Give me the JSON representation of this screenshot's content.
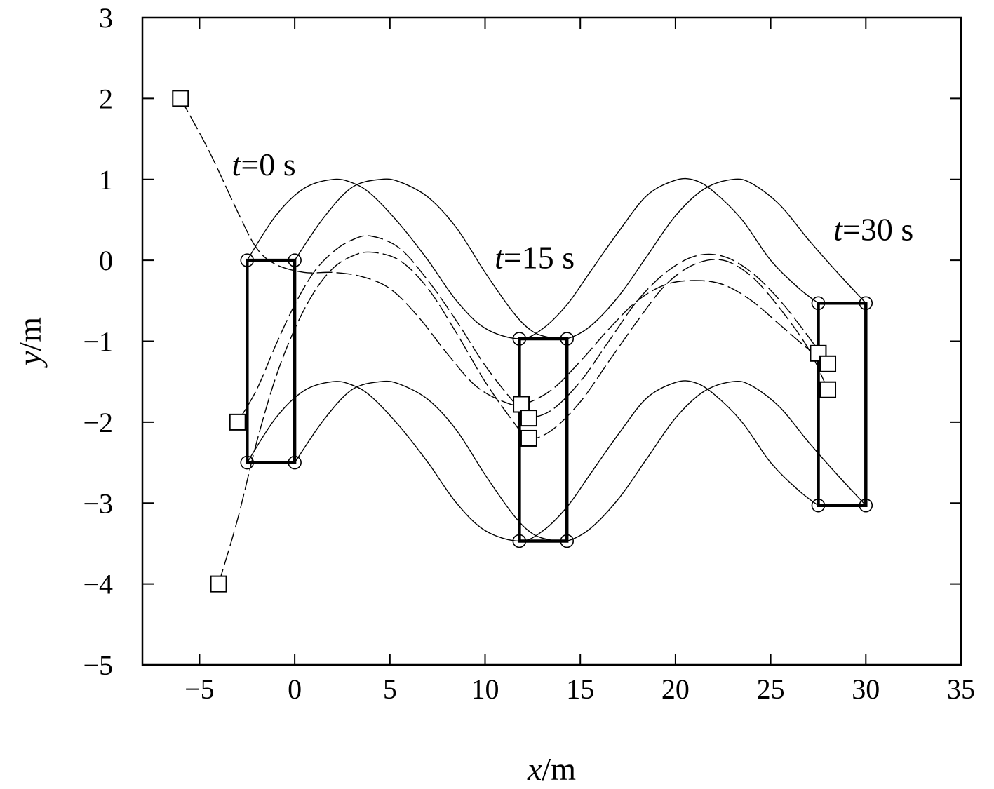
{
  "chart_data": {
    "type": "line",
    "xlabel": {
      "italic": "x",
      "rest": "/m"
    },
    "ylabel": {
      "italic": "y",
      "rest": "/m"
    },
    "xlim": [
      -8,
      35
    ],
    "ylim": [
      -5,
      3
    ],
    "xticks": [
      -5,
      0,
      5,
      10,
      15,
      20,
      25,
      30,
      35
    ],
    "yticks": [
      -5,
      -4,
      -3,
      -2,
      -1,
      0,
      1,
      2,
      3
    ],
    "grid": false,
    "annotations": [
      {
        "italic": "t",
        "rest": "=0 s",
        "x": -3.3,
        "y": 1.05
      },
      {
        "italic": "t",
        "rest": "=15 s",
        "x": 10.5,
        "y": -0.1
      },
      {
        "italic": "t",
        "rest": "=30 s",
        "x": 28.3,
        "y": 0.25
      }
    ],
    "formations": [
      {
        "time": "t=0 s",
        "corners": [
          [
            -2.5,
            0
          ],
          [
            0,
            0
          ],
          [
            0,
            -2.5
          ],
          [
            -2.5,
            -2.5
          ]
        ]
      },
      {
        "time": "t=15 s",
        "corners": [
          [
            11.8,
            -0.97
          ],
          [
            14.3,
            -0.97
          ],
          [
            14.3,
            -3.47
          ],
          [
            11.8,
            -3.47
          ]
        ]
      },
      {
        "time": "t=30 s",
        "corners": [
          [
            27.5,
            -0.53
          ],
          [
            30,
            -0.53
          ],
          [
            30,
            -3.03
          ],
          [
            27.5,
            -3.03
          ]
        ]
      }
    ],
    "leader_paths": [
      {
        "name": "corner-top-left",
        "x": [
          -2.5,
          -1,
          0.5,
          2,
          3,
          4,
          5.5,
          7,
          8.5,
          10,
          11.8,
          13,
          14.3,
          15.5,
          17,
          18.5,
          20,
          21,
          22,
          23.5,
          25,
          26.5,
          27.5
        ],
        "y": [
          0,
          0.55,
          0.89,
          1.0,
          0.96,
          0.82,
          0.45,
          0.0,
          -0.5,
          -0.84,
          -0.97,
          -0.85,
          -0.55,
          -0.15,
          0.35,
          0.8,
          0.99,
          0.99,
          0.85,
          0.5,
          0.0,
          -0.35,
          -0.53
        ]
      },
      {
        "name": "corner-top-right",
        "x": [
          0,
          1.5,
          3,
          4.5,
          5.5,
          7,
          8.5,
          10,
          11.5,
          12.5,
          13.5,
          14.3,
          15.5,
          17,
          18.5,
          20,
          21.5,
          23,
          24,
          25.5,
          27,
          28.5,
          30
        ],
        "y": [
          0,
          0.52,
          0.9,
          1.0,
          0.97,
          0.78,
          0.4,
          -0.15,
          -0.65,
          -0.88,
          -0.96,
          -0.97,
          -0.82,
          -0.45,
          0.05,
          0.55,
          0.88,
          1.0,
          0.95,
          0.68,
          0.25,
          -0.15,
          -0.53
        ]
      },
      {
        "name": "corner-bottom-left",
        "x": [
          -2.5,
          -1,
          0.5,
          2,
          3,
          4,
          5.5,
          7,
          8.5,
          10,
          11.8,
          13,
          14.3,
          15.5,
          17,
          18.5,
          20,
          21,
          22,
          23.5,
          25,
          26.5,
          27.5
        ],
        "y": [
          -2.5,
          -1.95,
          -1.61,
          -1.5,
          -1.54,
          -1.68,
          -2.05,
          -2.5,
          -3.0,
          -3.34,
          -3.47,
          -3.35,
          -3.05,
          -2.65,
          -2.15,
          -1.7,
          -1.51,
          -1.51,
          -1.65,
          -2.0,
          -2.5,
          -2.85,
          -3.03
        ]
      },
      {
        "name": "corner-bottom-right",
        "x": [
          0,
          1.5,
          3,
          4.5,
          5.5,
          7,
          8.5,
          10,
          11.5,
          12.5,
          13.5,
          14.3,
          15.5,
          17,
          18.5,
          20,
          21.5,
          23,
          24,
          25.5,
          27,
          28.5,
          30
        ],
        "y": [
          -2.5,
          -1.98,
          -1.6,
          -1.5,
          -1.53,
          -1.72,
          -2.1,
          -2.65,
          -3.15,
          -3.38,
          -3.46,
          -3.47,
          -3.32,
          -2.95,
          -2.45,
          -1.95,
          -1.62,
          -1.5,
          -1.55,
          -1.82,
          -2.25,
          -2.65,
          -3.03
        ]
      }
    ],
    "follower_paths": [
      {
        "name": "follower-1",
        "start": [
          -6,
          2
        ],
        "end": [
          27.5,
          -1.15
        ],
        "x": [
          -6,
          -4.5,
          -3,
          -2,
          -1,
          0.5,
          2,
          3.5,
          5,
          6.5,
          8,
          9.5,
          11,
          12,
          13.5,
          15,
          16.5,
          18,
          19.5,
          21,
          22.5,
          24,
          25.5,
          27,
          27.5
        ],
        "y": [
          2,
          1.35,
          0.6,
          0.15,
          -0.05,
          -0.15,
          -0.15,
          -0.2,
          -0.35,
          -0.7,
          -1.15,
          -1.55,
          -1.75,
          -1.78,
          -1.6,
          -1.25,
          -0.85,
          -0.5,
          -0.3,
          -0.25,
          -0.3,
          -0.5,
          -0.8,
          -1.1,
          -1.15
        ]
      },
      {
        "name": "follower-2",
        "start": [
          -3,
          -2
        ],
        "end": [
          28,
          -1.28
        ],
        "x": [
          -3,
          -2,
          -1,
          0,
          1,
          2,
          3,
          4,
          5.5,
          7,
          8.5,
          10,
          11.5,
          12.3,
          13.5,
          15,
          16.5,
          18,
          19.5,
          21,
          22.5,
          24,
          25.5,
          27,
          28
        ],
        "y": [
          -2,
          -1.6,
          -1.05,
          -0.55,
          -0.15,
          0.1,
          0.25,
          0.3,
          0.15,
          -0.25,
          -0.75,
          -1.3,
          -1.75,
          -1.93,
          -1.85,
          -1.5,
          -1.0,
          -0.5,
          -0.15,
          0.05,
          0.05,
          -0.15,
          -0.5,
          -0.95,
          -1.28
        ]
      },
      {
        "name": "follower-3",
        "start": [
          -4,
          -4
        ],
        "end": [
          28,
          -1.6
        ],
        "x": [
          -4,
          -3,
          -2,
          -1,
          0,
          1,
          2,
          3,
          4,
          5.5,
          7,
          8.5,
          10,
          11.5,
          12.3,
          13.5,
          15,
          16.5,
          18,
          19.5,
          21,
          22.5,
          24,
          25.5,
          27,
          28
        ],
        "y": [
          -4,
          -3.2,
          -2.25,
          -1.45,
          -0.85,
          -0.4,
          -0.1,
          0.05,
          0.1,
          0.0,
          -0.35,
          -0.9,
          -1.5,
          -2.0,
          -2.2,
          -2.1,
          -1.75,
          -1.25,
          -0.75,
          -0.3,
          -0.05,
          0.0,
          -0.2,
          -0.6,
          -1.1,
          -1.6
        ]
      }
    ],
    "follower_markers": [
      {
        "time": "t=0 s",
        "points": [
          [
            -6,
            2
          ],
          [
            -3,
            -2
          ],
          [
            -4,
            -4
          ]
        ]
      },
      {
        "time": "t=15 s",
        "points": [
          [
            11.9,
            -1.78
          ],
          [
            12.3,
            -1.95
          ],
          [
            12.3,
            -2.2
          ]
        ]
      },
      {
        "time": "t=30 s",
        "points": [
          [
            27.5,
            -1.15
          ],
          [
            28,
            -1.28
          ],
          [
            28,
            -1.6
          ]
        ]
      }
    ]
  }
}
